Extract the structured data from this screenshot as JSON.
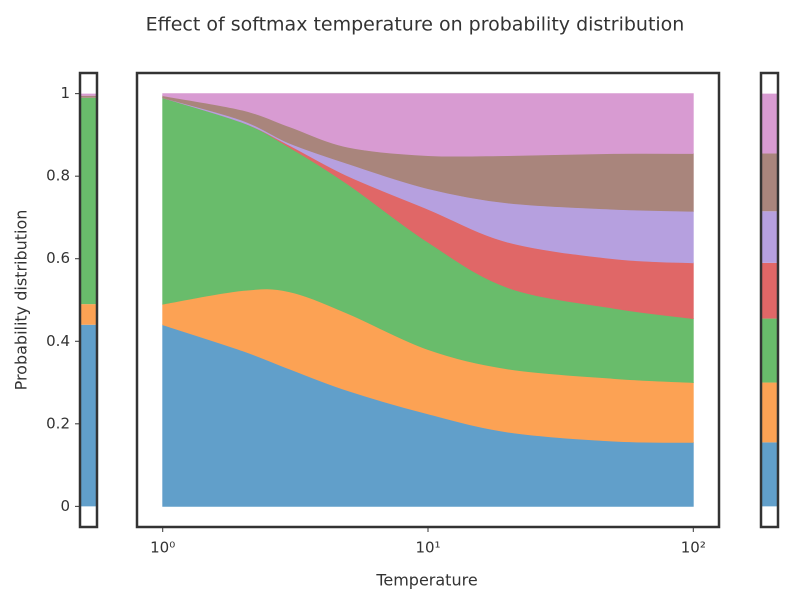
{
  "chart_data": {
    "type": "stacked_area",
    "title": "Effect of softmax temperature on probability distribution",
    "xlabel": "Temperature",
    "ylabel": "Probability distribution",
    "x": [
      1,
      2,
      3,
      5,
      10,
      20,
      50,
      100
    ],
    "xscale": "log",
    "xlim": [
      0.8,
      125
    ],
    "xticks": [
      {
        "value": 1,
        "label": "10⁰"
      },
      {
        "value": 10,
        "label": "10¹"
      },
      {
        "value": 100,
        "label": "10²"
      }
    ],
    "ylim": [
      -0.05,
      1.05
    ],
    "yticks": [
      0.0,
      0.2,
      0.4,
      0.6,
      0.8,
      1.0
    ],
    "series": [
      {
        "color": "#619fca",
        "values": [
          0.44,
          0.377,
          0.333,
          0.28,
          0.224,
          0.18,
          0.158,
          0.155
        ]
      },
      {
        "color": "#fca254",
        "values": [
          0.05,
          0.146,
          0.187,
          0.187,
          0.156,
          0.153,
          0.152,
          0.145
        ]
      },
      {
        "color": "#69bc6b",
        "values": [
          0.5,
          0.407,
          0.35,
          0.313,
          0.26,
          0.197,
          0.17,
          0.155
        ]
      },
      {
        "color": "#e06767",
        "values": [
          0,
          0,
          0.005,
          0.02,
          0.08,
          0.11,
          0.12,
          0.135
        ]
      },
      {
        "color": "#b6a0df",
        "values": [
          0,
          0.005,
          0.005,
          0.03,
          0.05,
          0.095,
          0.12,
          0.125
        ]
      },
      {
        "color": "#a9857c",
        "values": [
          0.005,
          0.025,
          0.04,
          0.04,
          0.08,
          0.115,
          0.135,
          0.14
        ]
      },
      {
        "color": "#d89bd2",
        "values": [
          0.005,
          0.04,
          0.08,
          0.13,
          0.15,
          0.15,
          0.145,
          0.145
        ]
      }
    ]
  }
}
